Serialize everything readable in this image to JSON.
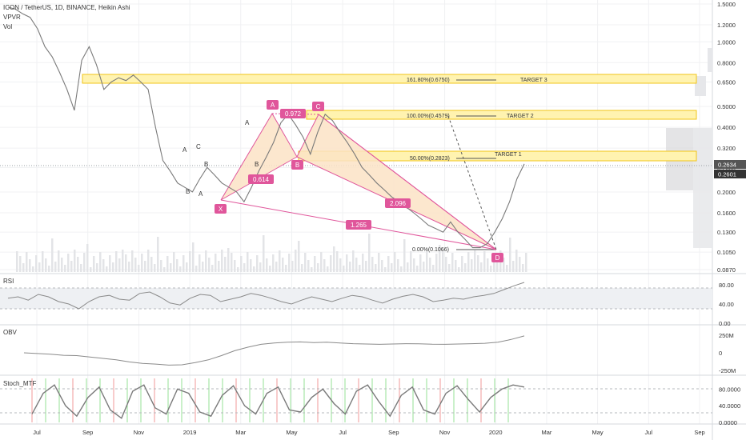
{
  "header": {
    "symbol_line": "ICON / TetherUS, 1D, BINANCE, Heikin Ashi",
    "indicator_vpvr": "VPVR",
    "indicator_vol": "Vol"
  },
  "colors": {
    "price": "#7a7a7a",
    "pattern_line": "#e0569b",
    "pattern_fill": "#fbe3c6",
    "target_fill": "#fff3b0",
    "target_border": "#f0c419",
    "badge": "#e0569b",
    "rsi_band": "#eef0f3",
    "stoch_green": "#7ddc7d",
    "stoch_red": "#f08080"
  },
  "chart_data": [
    {
      "type": "line",
      "title": "ICON / TetherUS, 1D, BINANCE, Heikin Ashi",
      "scale": "log",
      "y_ticks": [
        "1.5000",
        "1.2000",
        "1.0000",
        "0.8000",
        "0.6500",
        "0.5000",
        "0.4000",
        "0.3200",
        "0.2600",
        "0.2000",
        "0.1600",
        "0.1300",
        "0.1050",
        "0.0870"
      ],
      "x_ticks": [
        "Jul",
        "Sep",
        "Nov",
        "2019",
        "Mar",
        "May",
        "Jul",
        "Sep",
        "Nov",
        "2020",
        "Mar",
        "May",
        "Jul",
        "Sep"
      ],
      "last_price": "0.2634",
      "prev_price": "0.2601",
      "series": [
        {
          "values": [
            1.45,
            1.42,
            1.35,
            1.3,
            1.15,
            0.95,
            0.85,
            0.72,
            0.6,
            0.48,
            0.82,
            0.95,
            0.78,
            0.6,
            0.65,
            0.68,
            0.66,
            0.7,
            0.65,
            0.6,
            0.4,
            0.28,
            0.25,
            0.22,
            0.21,
            0.2,
            0.23,
            0.26,
            0.24,
            0.22,
            0.21,
            0.2,
            0.18,
            0.21,
            0.25,
            0.29,
            0.34,
            0.42,
            0.46,
            0.41,
            0.36,
            0.3,
            0.38,
            0.46,
            0.43,
            0.38,
            0.34,
            0.3,
            0.26,
            0.24,
            0.22,
            0.205,
            0.19,
            0.18,
            0.17,
            0.16,
            0.15,
            0.14,
            0.135,
            0.13,
            0.145,
            0.13,
            0.12,
            0.11,
            0.11,
            0.115,
            0.13,
            0.15,
            0.18,
            0.23,
            0.27
          ]
        }
      ]
    },
    {
      "type": "line",
      "title": "RSI",
      "y_ticks": [
        "80.00",
        "40.00",
        "0.00"
      ],
      "series": [
        {
          "values": [
            52,
            55,
            48,
            60,
            55,
            45,
            40,
            30,
            45,
            55,
            58,
            50,
            48,
            62,
            65,
            55,
            42,
            38,
            52,
            60,
            58,
            45,
            50,
            55,
            62,
            58,
            52,
            45,
            40,
            48,
            55,
            50,
            45,
            52,
            58,
            55,
            48,
            42,
            50,
            56,
            60,
            55,
            45,
            48,
            52,
            50,
            55,
            58,
            62,
            70,
            78,
            85
          ]
        }
      ]
    },
    {
      "type": "line",
      "title": "OBV",
      "y_ticks": [
        "250M",
        "0",
        "-250M"
      ],
      "series": [
        {
          "values": [
            0,
            -10,
            -20,
            -35,
            -40,
            -60,
            -80,
            -100,
            -130,
            -150,
            -160,
            -175,
            -170,
            -140,
            -100,
            -40,
            30,
            80,
            120,
            140,
            150,
            155,
            145,
            150,
            140,
            130,
            125,
            120,
            125,
            130,
            128,
            122,
            120,
            125,
            130,
            135,
            150,
            190,
            240
          ]
        }
      ]
    },
    {
      "type": "line",
      "title": "Stoch_MTF",
      "y_ticks": [
        "80.0000",
        "40.0000",
        "0.0000"
      ],
      "series": [
        {
          "values": [
            20,
            70,
            90,
            40,
            15,
            60,
            85,
            30,
            10,
            75,
            90,
            35,
            20,
            80,
            70,
            25,
            15,
            65,
            88,
            40,
            20,
            70,
            85,
            30,
            25,
            60,
            80,
            45,
            20,
            75,
            90,
            50,
            15,
            65,
            85,
            30,
            20,
            70,
            88,
            55,
            25,
            60,
            80,
            90,
            85
          ]
        }
      ]
    }
  ],
  "pattern": {
    "points": [
      {
        "label": "X",
        "price": 0.175
      },
      {
        "label": "A",
        "price": 0.46
      },
      {
        "label": "B",
        "price": 0.29
      },
      {
        "label": "C",
        "price": 0.46
      },
      {
        "label": "D",
        "price": 0.1066
      }
    ],
    "ratios": [
      "0.614",
      "0.972",
      "2.096",
      "1.265"
    ]
  },
  "targets": [
    {
      "fib": "161.80%(0.6750)",
      "label": "TARGET 3"
    },
    {
      "fib": "100.00%(0.4579)",
      "label": "TARGET 2"
    },
    {
      "fib": "50.00%(0.2823)",
      "label": "TARGET 1"
    }
  ],
  "fib_base": "0.00%(0.1066)",
  "wave_labels": [
    "A",
    "C",
    "B",
    "A",
    "B",
    "A",
    "B"
  ]
}
